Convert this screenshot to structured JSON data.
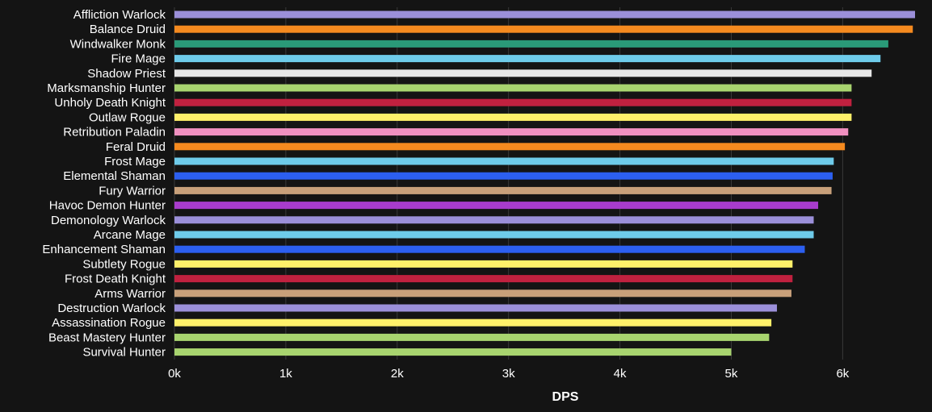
{
  "chart_data": {
    "type": "bar",
    "orientation": "horizontal",
    "xlabel": "DPS",
    "xlim": [
      0,
      6650
    ],
    "xticks": [
      0,
      1000,
      2000,
      3000,
      4000,
      5000,
      6000
    ],
    "xtick_labels": [
      "0k",
      "1k",
      "2k",
      "3k",
      "4k",
      "5k",
      "6k"
    ],
    "grid": "vertical lines",
    "categories": [
      "Affliction Warlock",
      "Balance Druid",
      "Windwalker Monk",
      "Fire Mage",
      "Shadow Priest",
      "Marksmanship Hunter",
      "Unholy Death Knight",
      "Outlaw Rogue",
      "Retribution Paladin",
      "Feral Druid",
      "Frost Mage",
      "Elemental Shaman",
      "Fury Warrior",
      "Havoc Demon Hunter",
      "Demonology Warlock",
      "Arcane Mage",
      "Enhancement Shaman",
      "Subtlety Rogue",
      "Frost Death Knight",
      "Arms Warrior",
      "Destruction Warlock",
      "Assassination Rogue",
      "Beast Mastery Hunter",
      "Survival Hunter"
    ],
    "values": [
      6650,
      6630,
      6410,
      6340,
      6260,
      6080,
      6080,
      6080,
      6050,
      6020,
      5920,
      5910,
      5900,
      5780,
      5740,
      5740,
      5660,
      5550,
      5550,
      5540,
      5410,
      5360,
      5340,
      5000
    ],
    "colors": [
      "#8787ED",
      "#FF7C0A",
      "#00FF98",
      "#3FC7EB",
      "#FFFFFF",
      "#AAD372",
      "#C41E3A",
      "#FFF468",
      "#F48CBA",
      "#FF7C0A",
      "#3FC7EB",
      "#0070DD",
      "#C69B6D",
      "#A330C9",
      "#8787ED",
      "#3FC7EB",
      "#0070DD",
      "#FFF468",
      "#C41E3A",
      "#C69B6D",
      "#8787ED",
      "#FFF468",
      "#AAD372",
      "#AAD372"
    ]
  }
}
